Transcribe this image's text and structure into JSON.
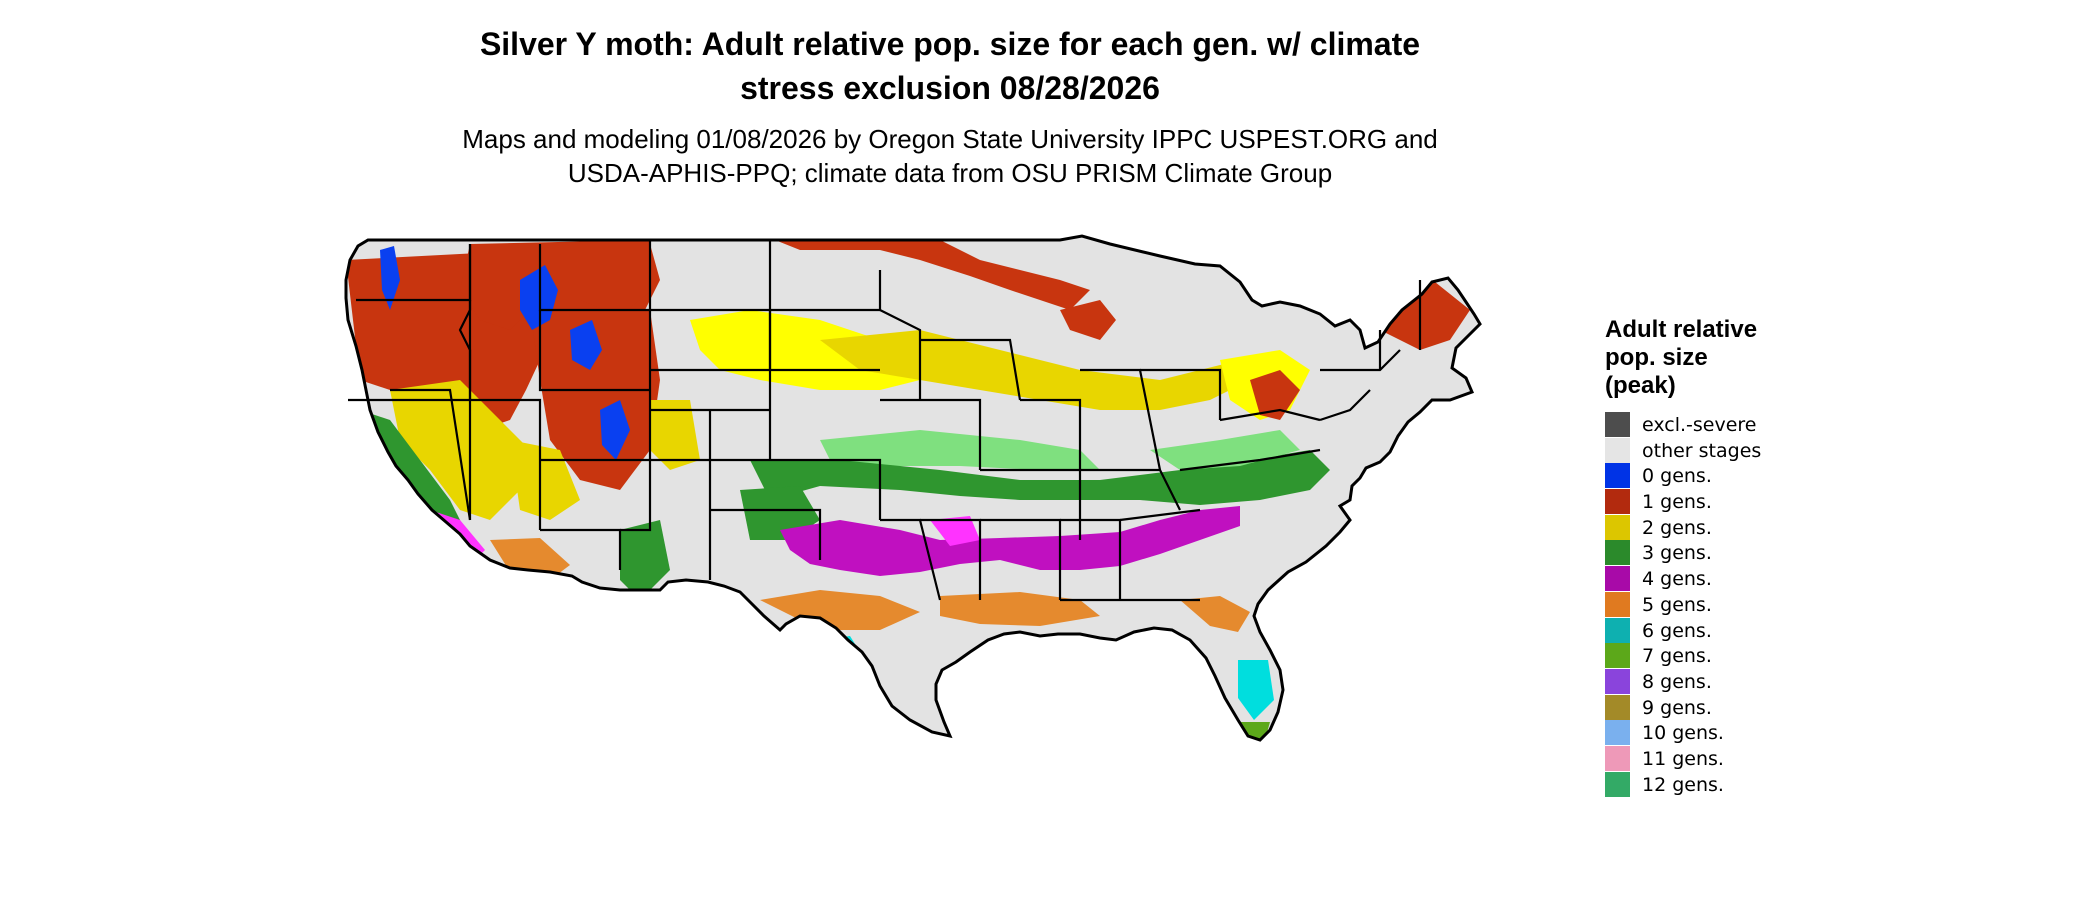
{
  "title": {
    "line1": "Silver Y moth: Adult relative pop. size for each gen. w/ climate",
    "line2": "stress exclusion 08/28/2026"
  },
  "subtitle": {
    "line1": "Maps and modeling 01/08/2026 by Oregon State University IPPC USPEST.ORG and",
    "line2": "USDA-APHIS-PPQ; climate data from OSU PRISM Climate Group"
  },
  "legend": {
    "title_lines": [
      "Adult relative",
      "pop. size",
      "(peak)"
    ],
    "items": [
      {
        "label": "excl.-severe",
        "color": "#4d4d4d"
      },
      {
        "label": "other stages",
        "color": "#e5e5e5"
      },
      {
        "label": "0 gens.",
        "color": "#0033e6"
      },
      {
        "label": "1 gens.",
        "color": "#b22a0e"
      },
      {
        "label": "2 gens.",
        "color": "#dcc600"
      },
      {
        "label": "3 gens.",
        "color": "#2b8a2b"
      },
      {
        "label": "4 gens.",
        "color": "#a80aa8"
      },
      {
        "label": "5 gens.",
        "color": "#e07a20"
      },
      {
        "label": "6 gens.",
        "color": "#0eb0b0"
      },
      {
        "label": "7 gens.",
        "color": "#5ca81a"
      },
      {
        "label": "8 gens.",
        "color": "#8a44dc"
      },
      {
        "label": "9 gens.",
        "color": "#a38a28"
      },
      {
        "label": "10 gens.",
        "color": "#7ab0ee"
      },
      {
        "label": "11 gens.",
        "color": "#ee99b8"
      },
      {
        "label": "12 gens.",
        "color": "#33aa66"
      }
    ]
  },
  "map": {
    "region": "Contiguous United States",
    "base_color": "#e3e3e3",
    "border_color": "#000000",
    "colors": {
      "one_gen": "#c8350f",
      "two_gen": "#e8d600",
      "two_gen_bright": "#ffff00",
      "three_gen": "#2f962f",
      "three_gen_light": "#7fe07f",
      "four_gen": "#c010c0",
      "four_gen_light": "#ff33ff",
      "five_gen": "#e58a2e",
      "six_gen": "#00dede",
      "zero_gen": "#0a40f0",
      "seven_gen": "#5ca81a"
    }
  }
}
